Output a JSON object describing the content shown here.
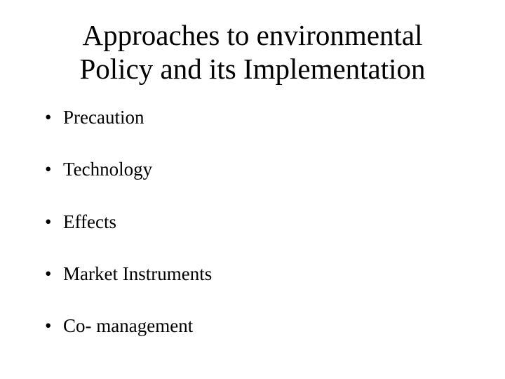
{
  "slide": {
    "title_line1": "Approaches to environmental",
    "title_line2": "Policy and its Implementation",
    "bullets": [
      "Precaution",
      "Technology",
      "Effects",
      "Market Instruments",
      "Co- management"
    ],
    "colors": {
      "background": "#ffffff",
      "text": "#000000"
    },
    "typography": {
      "font_family": "Times New Roman",
      "title_fontsize": 41,
      "bullet_fontsize": 27
    }
  }
}
